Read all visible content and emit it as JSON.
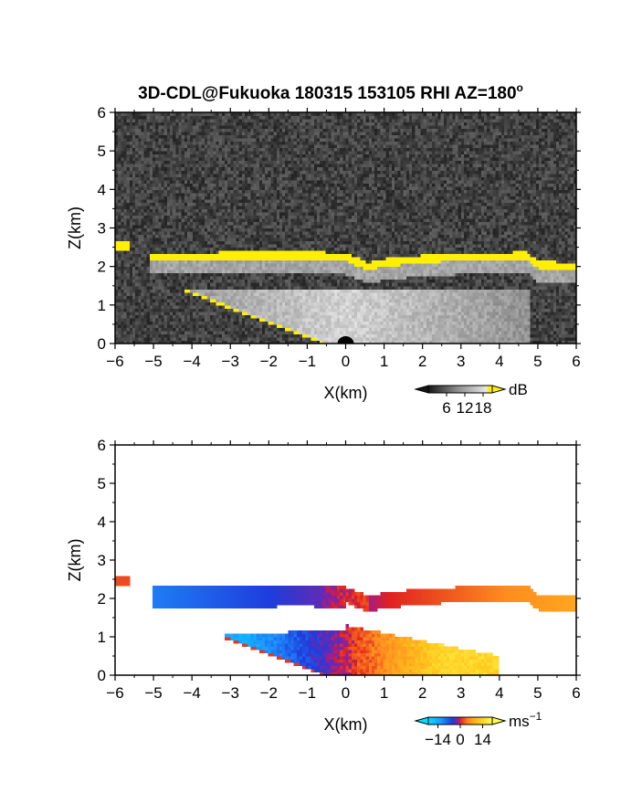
{
  "title": "3D-CDL@Fukuoka 180315 153105 RHI AZ=180",
  "title_superscript": "o",
  "chart_data": [
    {
      "type": "heatmap",
      "quantity": "backscatter intensity",
      "xlabel": "X(km)",
      "ylabel": "Z(km)",
      "xlim": [
        -6,
        6
      ],
      "ylim": [
        0,
        6
      ],
      "xticks": [
        "−6",
        "−5",
        "−4",
        "−3",
        "−2",
        "−1",
        "0",
        "1",
        "2",
        "3",
        "4",
        "5",
        "6"
      ],
      "yticks": [
        "0",
        "1",
        "2",
        "3",
        "4",
        "5",
        "6"
      ],
      "colorbar": {
        "unit": "dB",
        "tick_labels": [
          "6",
          "12",
          "18"
        ],
        "ticks": [
          6,
          12,
          18
        ],
        "range": [
          0,
          21
        ]
      },
      "colors": {
        "background": "#161616",
        "max": "#ffef00",
        "mid": "#8c8c8c"
      },
      "features": {
        "layer_top_km": [
          [
            -5,
            2.25
          ],
          [
            -3,
            2.28
          ],
          [
            -1,
            2.3
          ],
          [
            0,
            2.25
          ],
          [
            0.6,
            2.0
          ],
          [
            1,
            2.1
          ],
          [
            2,
            2.2
          ],
          [
            3,
            2.25
          ],
          [
            4,
            2.25
          ],
          [
            4.7,
            2.3
          ],
          [
            5,
            2.05
          ],
          [
            6,
            2.0
          ]
        ],
        "layer_top_value_dB": 21,
        "cloud_patch": {
          "x": [
            -6.0,
            -5.6
          ],
          "z": [
            2.4,
            2.65
          ]
        },
        "echo_region": {
          "x": [
            -5.0,
            4.8
          ],
          "z": [
            0,
            1.4
          ]
        }
      }
    },
    {
      "type": "heatmap",
      "quantity": "radial velocity",
      "xlabel": "X(km)",
      "ylabel": "Z(km)",
      "xlim": [
        -6,
        6
      ],
      "ylim": [
        0,
        6
      ],
      "xticks": [
        "−6",
        "−5",
        "−4",
        "−3",
        "−2",
        "−1",
        "0",
        "1",
        "2",
        "3",
        "4",
        "5",
        "6"
      ],
      "yticks": [
        "0",
        "1",
        "2",
        "3",
        "4",
        "5",
        "6"
      ],
      "colorbar": {
        "unit": "ms",
        "unit_superscript": "−1",
        "tick_labels": [
          "−14",
          "0",
          "14"
        ],
        "ticks": [
          -14,
          0,
          14
        ],
        "range": [
          -20,
          20
        ]
      },
      "colors": {
        "negative": "#1e3cdc",
        "near_zero": "#e02020",
        "positive": "#ff8c1e",
        "extreme_positive": "#ffff50",
        "extreme_negative": "#00e0ff"
      },
      "features": {
        "upper_layer_km": {
          "x": [
            -5.0,
            6.0
          ],
          "z": [
            1.9,
            2.4
          ],
          "velocity_left": -10,
          "velocity_right": 8
        },
        "lower_region_km": {
          "x": [
            -5.0,
            4.0
          ],
          "z": [
            0,
            1.3
          ],
          "velocity_left": -14,
          "velocity_right": 14
        }
      }
    }
  ]
}
